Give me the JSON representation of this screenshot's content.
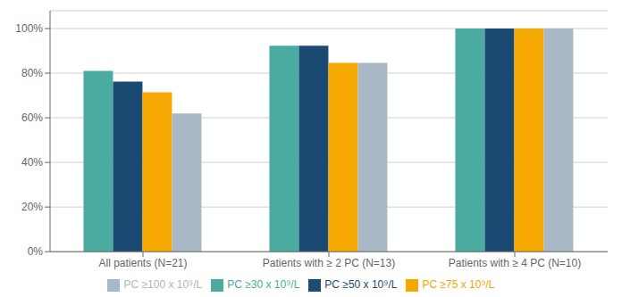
{
  "chart_data": {
    "type": "bar",
    "categories": [
      "All patients (N=21)",
      "Patients with ≥ 2 PC (N=13)",
      "Patients with ≥ 4 PC (N=10)"
    ],
    "series": [
      {
        "name": "PC ≥30 x 10⁹/L",
        "color": "#4BABA0",
        "values": [
          0.81,
          0.923,
          1.0
        ]
      },
      {
        "name": "PC ≥50 x 10⁹/L",
        "color": "#1B4B72",
        "values": [
          0.762,
          0.923,
          1.0
        ]
      },
      {
        "name": "PC ≥75 x 10⁹/L",
        "color": "#F5A800",
        "values": [
          0.714,
          0.846,
          1.0
        ]
      },
      {
        "name": "PC ≥100 x 10⁹/L",
        "color": "#A8B8C4",
        "values": [
          0.619,
          0.846,
          1.0
        ]
      }
    ],
    "ylim": [
      0,
      1.08
    ],
    "yticks": [
      {
        "value": 0,
        "label": "0%"
      },
      {
        "value": 0.2,
        "label": "20%"
      },
      {
        "value": 0.4,
        "label": "40%"
      },
      {
        "value": 0.6,
        "label": "60%"
      },
      {
        "value": 0.8,
        "label": "80%"
      },
      {
        "value": 1.0,
        "label": "100%"
      }
    ],
    "grid": true,
    "legend": "bottom"
  }
}
